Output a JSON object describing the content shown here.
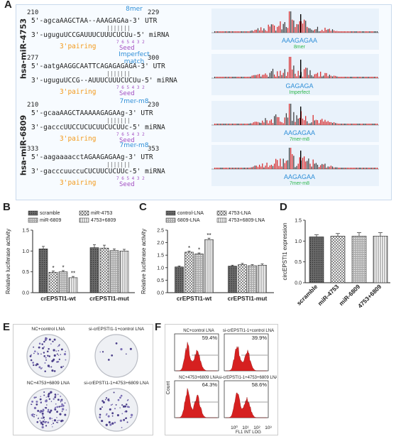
{
  "panels": {
    "A": {
      "letter": "A",
      "group1_label": "hsa-miR-4753",
      "group2_label": "hsa-miR-6809",
      "rows": [
        {
          "start": "210",
          "end": "229",
          "site": "8mer",
          "utr": "5'-agcaAAGCTAA--AAAGAGAa-3' UTR",
          "mirna": "3'-uguguUCCGAUUUCUUUCUCUu-5' miRNA",
          "seed_idx": "7 6 5 4 3 2",
          "track_label": "AAAGAGAA",
          "track_type": "8mer"
        },
        {
          "start": "277",
          "end": "300",
          "site": "Imperfect\nmatch",
          "utr": "5'-aatgAAGGCAATTCAGAGAGAGA-3' UTR",
          "mirna": "3'-uguguUCCG--AUUUCUUUCUCUu-5' miRNA",
          "seed_idx": "7 6 5 4 3 2",
          "track_label": "GAGAGA",
          "track_type": "Imperfect"
        },
        {
          "start": "210",
          "end": "230",
          "site": "7mer-m8",
          "utr": "5'-gcaaAAGCTAAAAAGAGAAg-3' UTR",
          "mirna": "3'-gacccUUCCUCUCUUCUCUUc-5' miRNA",
          "seed_idx": "7 6 5 4 3 2",
          "track_label": "AAGAGAA",
          "track_type": "7mer-m8"
        },
        {
          "start": "333",
          "end": "353",
          "site": "7mer-m8",
          "utr": "5'-aagaaaacctAGAAGAGAAg-3' UTR",
          "mirna": "3'-gacccuuccuCUCUUCUCUUc-5' miRNA",
          "seed_idx": "7 6 5 4 3 2",
          "track_label": "AAGAGAA",
          "track_type": "7mer-m8"
        }
      ],
      "pairing_label": "3'pairing",
      "seed_label": "Seed"
    },
    "B": {
      "letter": "B",
      "chart_data": {
        "type": "bar",
        "ylabel": "Relative luciferase activity",
        "ylim": [
          0,
          1.5
        ],
        "yticks": [
          "0.0",
          "0.5",
          "1.0",
          "1.5"
        ],
        "categories": [
          "crEPSTI1-wt",
          "crEPSTI1-mut"
        ],
        "series": [
          {
            "name": "scramble",
            "values": [
              1.05,
              1.08
            ],
            "err": [
              0.06,
              0.07
            ]
          },
          {
            "name": "miR-4753",
            "values": [
              0.49,
              1.07
            ],
            "err": [
              0.03,
              0.07
            ]
          },
          {
            "name": "miR-6809",
            "values": [
              0.5,
              1.01
            ],
            "err": [
              0.03,
              0.04
            ]
          },
          {
            "name": "4753+6809",
            "values": [
              0.36,
              1.0
            ],
            "err": [
              0.03,
              0.04
            ]
          }
        ],
        "significance": [
          [
            "",
            "*",
            "*",
            "**"
          ],
          [
            "",
            "",
            "",
            ""
          ]
        ],
        "legend_position": "top"
      }
    },
    "C": {
      "letter": "C",
      "chart_data": {
        "type": "bar",
        "ylabel": "Relative luciferase activity",
        "ylim": [
          0,
          2.5
        ],
        "yticks": [
          "0.0",
          "0.5",
          "1.0",
          "1.5",
          "2.0",
          "2.5"
        ],
        "categories": [
          "crEPSTI1-wt",
          "crEPSTI1-mut"
        ],
        "series": [
          {
            "name": "control-LNA",
            "values": [
              1.03,
              1.06
            ],
            "err": [
              0.04,
              0.04
            ]
          },
          {
            "name": "4753-LNA",
            "values": [
              1.62,
              1.12
            ],
            "err": [
              0.04,
              0.05
            ]
          },
          {
            "name": "6809-LNA",
            "values": [
              1.55,
              1.08
            ],
            "err": [
              0.04,
              0.04
            ]
          },
          {
            "name": "4753+6809-LNA",
            "values": [
              2.12,
              1.1
            ],
            "err": [
              0.06,
              0.05
            ]
          }
        ],
        "significance": [
          [
            "",
            "*",
            "*",
            "**"
          ],
          [
            "",
            "",
            "",
            ""
          ]
        ],
        "legend_position": "top"
      }
    },
    "D": {
      "letter": "D",
      "chart_data": {
        "type": "bar",
        "ylabel": "circEPSTI1 expression",
        "ylim": [
          0,
          1.5
        ],
        "yticks": [
          "0.0",
          "0.5",
          "1.0",
          "1.5"
        ],
        "categories": [
          "scramble",
          "miR-4753",
          "miR-6809",
          "4753+6809"
        ],
        "values": [
          1.1,
          1.12,
          1.12,
          1.12
        ],
        "err": [
          0.05,
          0.06,
          0.08,
          0.08
        ]
      }
    },
    "E": {
      "letter": "E",
      "labels": [
        "NC+control LNA",
        "si-crEPSTI1-1+control LNA",
        "NC+4753+6809 LNA",
        "si-crEPSTI1-1+4753+6809 LNA"
      ]
    },
    "F": {
      "letter": "F",
      "labels": [
        "NC+control LNA",
        "si-crEPSTI1-1+control LNA",
        "NC+4753+6809 LNA",
        "si-crEPSTI1-1+4753+6809 LNA"
      ],
      "percents": [
        "59.4%",
        "39.9%",
        "64.3%",
        "58.6%"
      ],
      "ylabel": "Count",
      "xlabel": "FL1 INT LOG",
      "xticks": [
        "10⁰",
        "10¹",
        "10²",
        "10³"
      ]
    }
  },
  "colors": {
    "red": "#d62020",
    "green": "#2db84b",
    "orange": "#f39a1c",
    "purple": "#a34fc2",
    "blue": "#2f8fd8",
    "track_bg": "#e9f2fb"
  }
}
